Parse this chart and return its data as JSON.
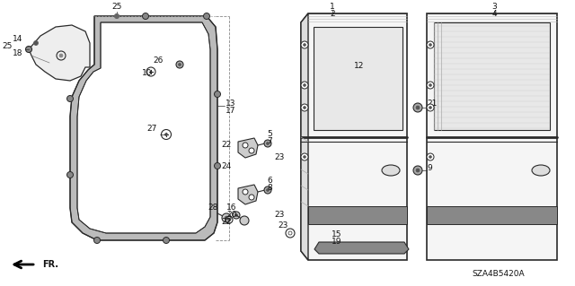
{
  "bg_color": "#ffffff",
  "line_color": "#2a2a2a",
  "diagram_id": "SZA4B5420A",
  "label_fs": 6.5
}
